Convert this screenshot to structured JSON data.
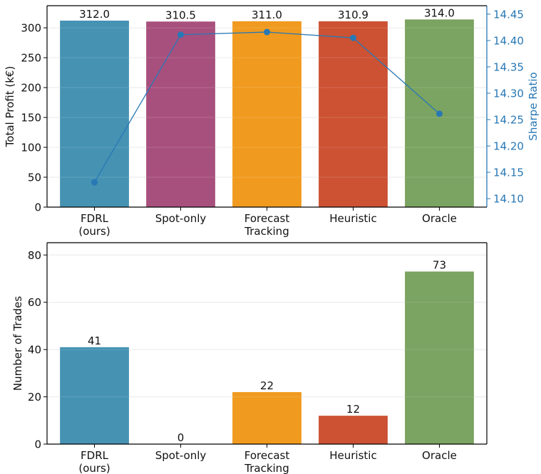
{
  "chart_data": [
    {
      "type": "bar",
      "title": "",
      "categories": [
        "FDRL\n(ours)",
        "Spot-only",
        "Forecast\nTracking",
        "Heuristic",
        "Oracle"
      ],
      "xlabel": "",
      "ylabel": "Total Profit (k€)",
      "ylim": [
        0,
        337
      ],
      "yticks": [
        0,
        50,
        100,
        150,
        200,
        250,
        300
      ],
      "grid": true,
      "series": [
        {
          "name": "Total Profit (k€)",
          "type": "bar",
          "axis": "left",
          "values": [
            312.0,
            310.5,
            311.0,
            310.9,
            314.0
          ],
          "labels": [
            "312.0",
            "310.5",
            "311.0",
            "310.9",
            "314.0"
          ],
          "colors": [
            "#4592b3",
            "#a8507d",
            "#f09a1f",
            "#cc5233",
            "#7ba361"
          ]
        },
        {
          "name": "Sharpe Ratio",
          "type": "line",
          "axis": "right",
          "values": [
            14.131,
            14.411,
            14.416,
            14.405,
            14.261
          ],
          "color": "#2878b5"
        }
      ],
      "y2label": "Sharpe Ratio",
      "y2lim": [
        14.084,
        14.466
      ],
      "y2ticks": [
        "14.10",
        "14.15",
        "14.20",
        "14.25",
        "14.30",
        "14.35",
        "14.40",
        "14.45"
      ],
      "y2color": "#2878b5"
    },
    {
      "type": "bar",
      "title": "",
      "categories": [
        "FDRL\n(ours)",
        "Spot-only",
        "Forecast\nTracking",
        "Heuristic",
        "Oracle"
      ],
      "xlabel": "",
      "ylabel": "Number of Trades",
      "ylim": [
        0,
        85.2
      ],
      "yticks": [
        0,
        20,
        40,
        60,
        80
      ],
      "grid": true,
      "series": [
        {
          "name": "Number of Trades",
          "type": "bar",
          "values": [
            41,
            0,
            22,
            12,
            73
          ],
          "labels": [
            "41",
            "0",
            "22",
            "12",
            "73"
          ],
          "colors": [
            "#4592b3",
            "#a8507d",
            "#f09a1f",
            "#cc5233",
            "#7ba361"
          ]
        }
      ]
    }
  ]
}
